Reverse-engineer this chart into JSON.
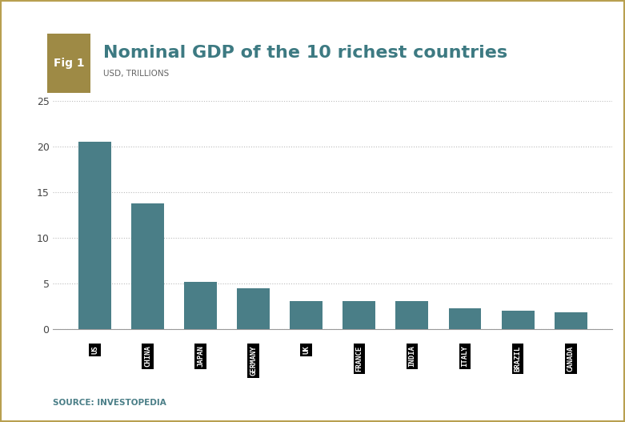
{
  "title": "Nominal GDP of the 10 richest countries",
  "subtitle": "USD, TRILLIONS",
  "fig_label": "Fig 1",
  "source": "SOURCE: INVESTOPEDIA",
  "categories": [
    "US",
    "CHINA",
    "JAPAN",
    "GERMANY",
    "UK",
    "FRANCE",
    "INDIA",
    "ITALY",
    "BRAZIL",
    "CANADA"
  ],
  "values": [
    20.58,
    13.82,
    5.18,
    4.52,
    3.12,
    3.06,
    3.06,
    2.26,
    2.05,
    1.85
  ],
  "bar_color": "#4a7e87",
  "tick_label_bg": "#000000",
  "tick_label_fg": "#ffffff",
  "title_color": "#3d7a82",
  "fig_label_bg": "#9e8a45",
  "fig_label_fg": "#ffffff",
  "subtitle_color": "#666666",
  "source_color": "#4a7e87",
  "grid_color": "#bbbbbb",
  "background_color": "#ffffff",
  "border_color": "#b8a050",
  "ylim": [
    0,
    25
  ],
  "yticks": [
    0,
    5,
    10,
    15,
    20,
    25
  ]
}
